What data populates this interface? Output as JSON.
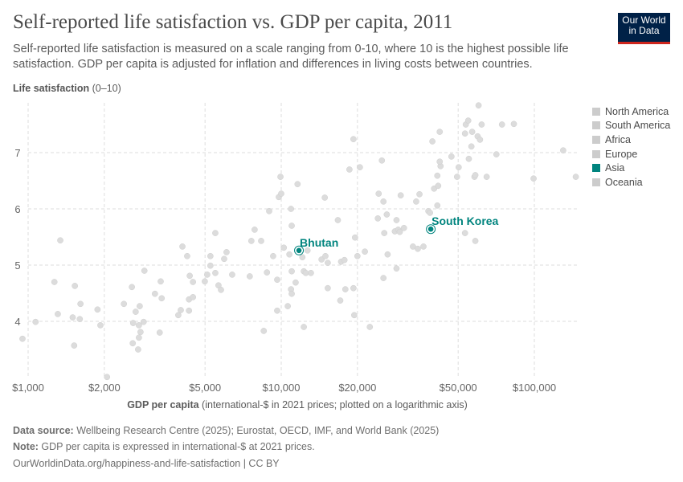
{
  "header": {
    "title": "Self-reported life satisfaction vs. GDP per capita, 2011",
    "subtitle": "Self-reported life satisfaction is measured on a scale ranging from 0-10, where 10 is the highest possible life satisfaction. GDP per capita is adjusted for inflation and differences in living costs between countries.",
    "logo_text": "Our World in Data",
    "logo_line1": "Our World",
    "logo_line2": "in Data"
  },
  "colors": {
    "accent": "#00847e",
    "point": "#dcdcdc",
    "legend_inactive": "#cccccc",
    "logo_bg": "#002147",
    "logo_bar": "#ce261e"
  },
  "chart_data": {
    "type": "scatter",
    "title": "Self-reported life satisfaction vs. GDP per capita, 2011",
    "ylabel_bold": "Life satisfaction",
    "ylabel_rest": " (0–10)",
    "xlabel_bold": "GDP per capita",
    "xlabel_rest": " (international-$ in 2021 prices; plotted on a logarithmic axis)",
    "x_scale": "log",
    "xlim": [
      900,
      150000
    ],
    "ylim": [
      3,
      7.9
    ],
    "grid": true,
    "legend_placement": "right",
    "x_ticks": [
      {
        "v": 1000,
        "label": "$1,000"
      },
      {
        "v": 2000,
        "label": "$2,000"
      },
      {
        "v": 5000,
        "label": "$5,000"
      },
      {
        "v": 10000,
        "label": "$10,000"
      },
      {
        "v": 20000,
        "label": "$20,000"
      },
      {
        "v": 50000,
        "label": "$50,000"
      },
      {
        "v": 100000,
        "label": "$100,000"
      }
    ],
    "y_ticks": [
      {
        "v": 4,
        "label": "4"
      },
      {
        "v": 5,
        "label": "5"
      },
      {
        "v": 6,
        "label": "6"
      },
      {
        "v": 7,
        "label": "7"
      }
    ],
    "legend": [
      {
        "name": "North America",
        "color": "#cccccc"
      },
      {
        "name": "South America",
        "color": "#cccccc"
      },
      {
        "name": "Africa",
        "color": "#cccccc"
      },
      {
        "name": "Europe",
        "color": "#cccccc"
      },
      {
        "name": "Asia",
        "color": "#00847e"
      },
      {
        "name": "Oceania",
        "color": "#cccccc"
      }
    ],
    "highlighted": [
      {
        "name": "Bhutan",
        "x": 11750,
        "y": 5.26
      },
      {
        "name": "South Korea",
        "x": 38980,
        "y": 5.64
      }
    ],
    "points": [
      [
        950,
        3.69
      ],
      [
        1070,
        3.99
      ],
      [
        1340,
        5.44
      ],
      [
        1270,
        4.7
      ],
      [
        1310,
        4.13
      ],
      [
        1530,
        4.63
      ],
      [
        1500,
        4.07
      ],
      [
        1600,
        4.04
      ],
      [
        1610,
        4.31
      ],
      [
        1520,
        3.57
      ],
      [
        1880,
        4.21
      ],
      [
        1930,
        3.93
      ],
      [
        2050,
        3.01
      ],
      [
        2390,
        4.31
      ],
      [
        2570,
        4.61
      ],
      [
        2660,
        4.17
      ],
      [
        2760,
        4.27
      ],
      [
        2600,
        3.97
      ],
      [
        2740,
        3.93
      ],
      [
        2860,
        3.99
      ],
      [
        2780,
        3.81
      ],
      [
        2740,
        3.71
      ],
      [
        2590,
        3.61
      ],
      [
        2720,
        3.5
      ],
      [
        2880,
        4.9
      ],
      [
        3170,
        4.49
      ],
      [
        3340,
        4.71
      ],
      [
        3370,
        4.41
      ],
      [
        3310,
        3.8
      ],
      [
        3920,
        4.11
      ],
      [
        4010,
        4.2
      ],
      [
        4070,
        5.33
      ],
      [
        4250,
        5.16
      ],
      [
        4320,
        4.19
      ],
      [
        4320,
        4.39
      ],
      [
        4350,
        4.81
      ],
      [
        4480,
        4.7
      ],
      [
        4480,
        4.43
      ],
      [
        4990,
        4.71
      ],
      [
        5100,
        4.83
      ],
      [
        5250,
        4.99
      ],
      [
        5250,
        5.16
      ],
      [
        5490,
        5.57
      ],
      [
        5490,
        4.86
      ],
      [
        5650,
        4.64
      ],
      [
        5780,
        4.56
      ],
      [
        5950,
        5.11
      ],
      [
        6080,
        5.23
      ],
      [
        6400,
        4.83
      ],
      [
        7510,
        4.8
      ],
      [
        7620,
        5.43
      ],
      [
        7850,
        5.63
      ],
      [
        8330,
        5.43
      ],
      [
        8530,
        3.83
      ],
      [
        8780,
        4.87
      ],
      [
        8960,
        5.96
      ],
      [
        9290,
        5.16
      ],
      [
        9640,
        4.74
      ],
      [
        9640,
        4.19
      ],
      [
        9780,
        6.21
      ],
      [
        10000,
        6.27
      ],
      [
        9930,
        6.57
      ],
      [
        10240,
        5.31
      ],
      [
        10610,
        4.27
      ],
      [
        10770,
        5.19
      ],
      [
        10930,
        6.0
      ],
      [
        11000,
        5.7
      ],
      [
        11000,
        4.89
      ],
      [
        10930,
        4.57
      ],
      [
        11000,
        4.49
      ],
      [
        11400,
        4.69
      ],
      [
        11600,
        6.44
      ],
      [
        12700,
        5.26
      ],
      [
        12120,
        5.14
      ],
      [
        12280,
        4.89
      ],
      [
        12500,
        4.86
      ],
      [
        13100,
        4.86
      ],
      [
        12280,
        3.9
      ],
      [
        14860,
        6.2
      ],
      [
        16740,
        5.8
      ],
      [
        14430,
        5.1
      ],
      [
        14950,
        5.16
      ],
      [
        15270,
        5.04
      ],
      [
        17240,
        5.06
      ],
      [
        17770,
        5.09
      ],
      [
        15270,
        4.59
      ],
      [
        17920,
        4.57
      ],
      [
        19290,
        4.59
      ],
      [
        17110,
        4.37
      ],
      [
        19430,
        4.11
      ],
      [
        19570,
        5.49
      ],
      [
        20000,
        5.16
      ],
      [
        21400,
        5.24
      ],
      [
        22390,
        3.9
      ],
      [
        19290,
        7.24
      ],
      [
        18600,
        6.7
      ],
      [
        20450,
        6.74
      ],
      [
        24980,
        6.86
      ],
      [
        24260,
        6.27
      ],
      [
        25340,
        6.13
      ],
      [
        24080,
        5.83
      ],
      [
        26120,
        5.9
      ],
      [
        25530,
        5.57
      ],
      [
        26320,
        5.19
      ],
      [
        25340,
        4.77
      ],
      [
        28540,
        5.8
      ],
      [
        28110,
        5.6
      ],
      [
        28980,
        5.63
      ],
      [
        29400,
        5.59
      ],
      [
        30540,
        5.66
      ],
      [
        28540,
        4.94
      ],
      [
        29650,
        6.24
      ],
      [
        34130,
        6.13
      ],
      [
        35170,
        6.26
      ],
      [
        33140,
        5.33
      ],
      [
        34640,
        5.29
      ],
      [
        36470,
        5.33
      ],
      [
        38130,
        5.96
      ],
      [
        38700,
        5.93
      ],
      [
        41380,
        6.06
      ],
      [
        40170,
        6.36
      ],
      [
        41690,
        6.41
      ],
      [
        41380,
        6.59
      ],
      [
        42600,
        6.76
      ],
      [
        42280,
        6.84
      ],
      [
        39550,
        7.2
      ],
      [
        42280,
        7.37
      ],
      [
        47040,
        6.93
      ],
      [
        50240,
        6.74
      ],
      [
        49510,
        6.57
      ],
      [
        53210,
        5.57
      ],
      [
        58460,
        5.43
      ],
      [
        53210,
        7.34
      ],
      [
        53600,
        7.5
      ],
      [
        54800,
        7.57
      ],
      [
        56800,
        7.37
      ],
      [
        60200,
        7.84
      ],
      [
        61900,
        7.5
      ],
      [
        59700,
        7.29
      ],
      [
        61000,
        7.23
      ],
      [
        56400,
        7.11
      ],
      [
        55100,
        6.89
      ],
      [
        58000,
        6.57
      ],
      [
        58460,
        6.6
      ],
      [
        64800,
        6.57
      ],
      [
        70800,
        6.97
      ],
      [
        74500,
        7.5
      ],
      [
        83000,
        7.51
      ],
      [
        99300,
        6.54
      ],
      [
        130000,
        7.04
      ],
      [
        145800,
        6.57
      ]
    ]
  },
  "footer": {
    "source_label": "Data source:",
    "source_text": " Wellbeing Research Centre (2025); Eurostat, OECD, IMF, and World Bank (2025)",
    "note_label": "Note:",
    "note_text": " GDP per capita is expressed in international-$ at 2021 prices.",
    "url": "OurWorldinData.org/happiness-and-life-satisfaction | CC BY"
  }
}
